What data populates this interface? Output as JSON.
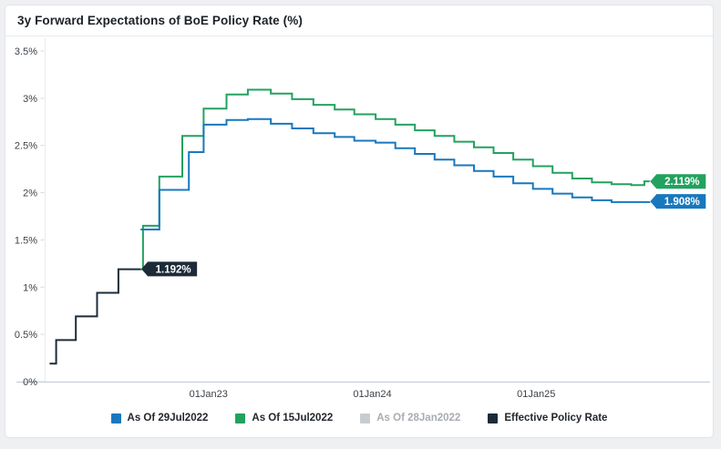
{
  "window": {
    "title": "3y Forward Expectations of BoE Policy Rate (%)"
  },
  "chart_data": {
    "type": "line",
    "step": true,
    "title": "3y Forward Expectations of BoE Policy Rate (%)",
    "xlabel": "",
    "ylabel": "",
    "grid": false,
    "legend_position": "bottom",
    "x_axis": {
      "range": [
        2022.0,
        2026.05
      ],
      "ticks": [
        2023,
        2024,
        2025
      ],
      "tick_labels": [
        "01Jan23",
        "01Jan24",
        "01Jan25"
      ]
    },
    "y_axis": {
      "range": [
        0,
        3.5
      ],
      "unit": "%",
      "ticks": [
        0,
        0.5,
        1,
        1.5,
        2,
        2.5,
        3,
        3.5
      ],
      "tick_labels": [
        "0%",
        "0.5%",
        "1%",
        "1.5%",
        "2%",
        "2.5%",
        "3%",
        "3.5%"
      ]
    },
    "colors": {
      "axis_line": "#c7ced7",
      "tick_mark": "#d5d9dd",
      "tick_text": "#3c4147",
      "left_axis_line": "#eaecef"
    },
    "series": [
      {
        "name": "As Of 29Jul2022",
        "color": "#1878be",
        "visible": true,
        "end_label": "1.908%",
        "points": [
          [
            2022.585,
            1.61
          ],
          [
            2022.7,
            2.03
          ],
          [
            2022.88,
            2.43
          ],
          [
            2022.97,
            2.72
          ],
          [
            2023.11,
            2.77
          ],
          [
            2023.24,
            2.78
          ],
          [
            2023.38,
            2.73
          ],
          [
            2023.51,
            2.68
          ],
          [
            2023.64,
            2.63
          ],
          [
            2023.77,
            2.59
          ],
          [
            2023.89,
            2.55
          ],
          [
            2024.02,
            2.53
          ],
          [
            2024.14,
            2.47
          ],
          [
            2024.26,
            2.41
          ],
          [
            2024.38,
            2.35
          ],
          [
            2024.5,
            2.29
          ],
          [
            2024.62,
            2.23
          ],
          [
            2024.74,
            2.17
          ],
          [
            2024.86,
            2.1
          ],
          [
            2024.98,
            2.04
          ],
          [
            2025.1,
            1.99
          ],
          [
            2025.22,
            1.95
          ],
          [
            2025.34,
            1.92
          ],
          [
            2025.46,
            1.9
          ],
          [
            2025.69,
            1.908
          ]
        ]
      },
      {
        "name": "As Of 15Jul2022",
        "color": "#22a25f",
        "visible": true,
        "end_label": "2.119%",
        "points": [
          [
            2022.585,
            1.19
          ],
          [
            2022.6,
            1.65
          ],
          [
            2022.7,
            2.17
          ],
          [
            2022.84,
            2.6
          ],
          [
            2022.97,
            2.89
          ],
          [
            2023.11,
            3.04
          ],
          [
            2023.24,
            3.09
          ],
          [
            2023.38,
            3.05
          ],
          [
            2023.51,
            2.99
          ],
          [
            2023.64,
            2.93
          ],
          [
            2023.77,
            2.88
          ],
          [
            2023.89,
            2.83
          ],
          [
            2024.02,
            2.78
          ],
          [
            2024.14,
            2.72
          ],
          [
            2024.26,
            2.66
          ],
          [
            2024.38,
            2.6
          ],
          [
            2024.5,
            2.54
          ],
          [
            2024.62,
            2.48
          ],
          [
            2024.74,
            2.42
          ],
          [
            2024.86,
            2.35
          ],
          [
            2024.98,
            2.28
          ],
          [
            2025.1,
            2.21
          ],
          [
            2025.22,
            2.15
          ],
          [
            2025.34,
            2.11
          ],
          [
            2025.46,
            2.09
          ],
          [
            2025.58,
            2.08
          ],
          [
            2025.66,
            2.12
          ],
          [
            2025.69,
            2.119
          ]
        ]
      },
      {
        "name": "As Of 28Jan2022",
        "color": "#c9cccf",
        "visible": false,
        "end_label": null,
        "points": []
      },
      {
        "name": "Effective Policy Rate",
        "color": "#1d2b39",
        "visible": true,
        "end_label": "1.192%",
        "points": [
          [
            2022.03,
            0.19
          ],
          [
            2022.07,
            0.44
          ],
          [
            2022.19,
            0.69
          ],
          [
            2022.32,
            0.94
          ],
          [
            2022.45,
            1.19
          ],
          [
            2022.585,
            1.192
          ]
        ]
      }
    ]
  }
}
